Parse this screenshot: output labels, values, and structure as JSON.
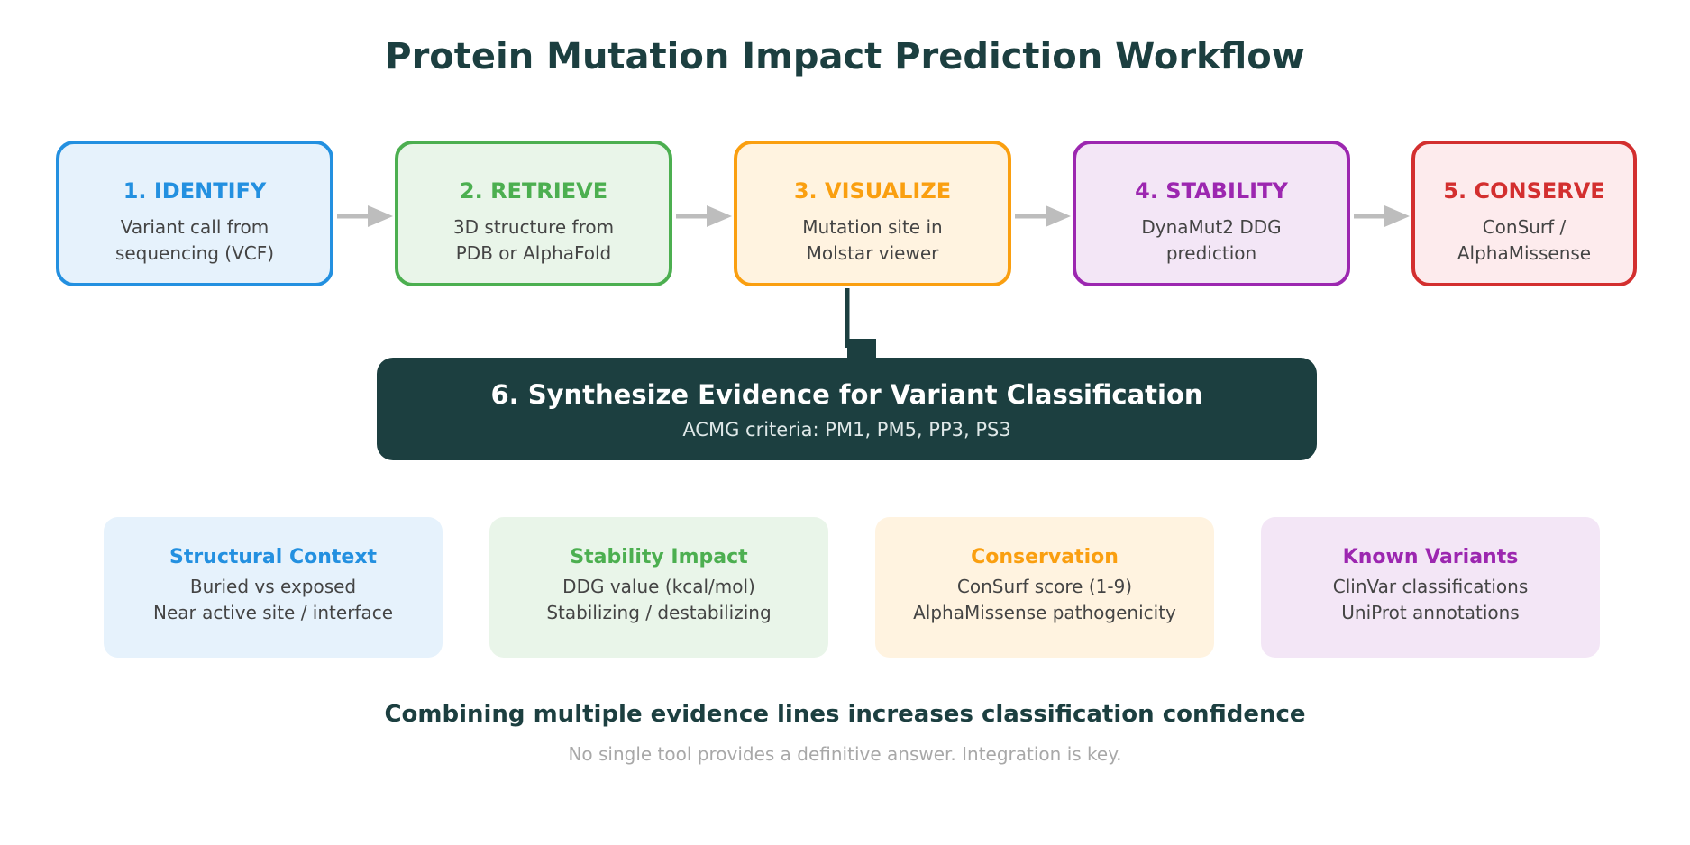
{
  "title": "Protein Mutation Impact Prediction Workflow",
  "steps": [
    {
      "title": "1. IDENTIFY",
      "line1": "Variant call from",
      "line2": "sequencing (VCF)"
    },
    {
      "title": "2. RETRIEVE",
      "line1": "3D structure from",
      "line2": "PDB or AlphaFold"
    },
    {
      "title": "3. VISUALIZE",
      "line1": "Mutation site in",
      "line2": "Molstar viewer"
    },
    {
      "title": "4. STABILITY",
      "line1": "DynaMut2 DDG",
      "line2": "prediction"
    },
    {
      "title": "5. CONSERVE",
      "line1": "ConSurf /",
      "line2": "AlphaMissense"
    }
  ],
  "synthesis": {
    "title": "6. Synthesize Evidence for Variant Classification",
    "subtitle": "ACMG criteria: PM1, PM5, PP3, PS3"
  },
  "evidence": [
    {
      "title": "Structural Context",
      "line1": "Buried vs exposed",
      "line2": "Near active site / interface"
    },
    {
      "title": "Stability Impact",
      "line1": "DDG value (kcal/mol)",
      "line2": "Stabilizing / destabilizing"
    },
    {
      "title": "Conservation",
      "line1": "ConSurf score (1-9)",
      "line2": "AlphaMissense pathogenicity"
    },
    {
      "title": "Known Variants",
      "line1": "ClinVar classifications",
      "line2": "UniProt annotations"
    }
  ],
  "footer": {
    "main": "Combining multiple evidence lines increases classification confidence",
    "sub": "No single tool provides a definitive answer. Integration is key."
  },
  "colors": {
    "identify": "#2390e0",
    "retrieve": "#4caf50",
    "visualize": "#fa9f10",
    "stability": "#9c27b0",
    "conserve": "#d32f2f",
    "dark": "#1c3f40",
    "arrow": "#bdbdbd"
  }
}
